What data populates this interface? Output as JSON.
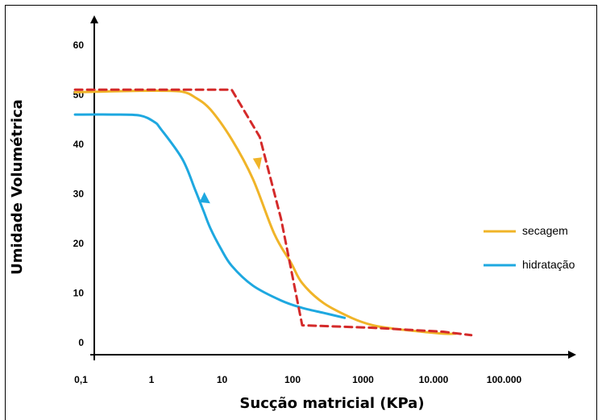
{
  "chart_data": {
    "type": "line",
    "xlabel": "Sucção matricial (KPa)",
    "ylabel": "Umidade Volumétrica",
    "x_scale": "log",
    "x_tick_labels": [
      "0,1",
      "1",
      "10",
      "100",
      "1000",
      "10.000",
      "100.000"
    ],
    "x_ticks": [
      0.1,
      1,
      10,
      100,
      1000,
      10000,
      100000
    ],
    "y_tick_labels": [
      "0",
      "10",
      "20",
      "30",
      "40",
      "50",
      "60"
    ],
    "y_ticks": [
      0,
      10,
      20,
      30,
      40,
      50,
      60
    ],
    "grid": false,
    "legend_position": "right",
    "series": [
      {
        "name": "secagem",
        "color": "#f0b428",
        "style": "solid",
        "arrow": "down",
        "x": [
          0.06,
          0.5,
          1,
          2,
          3,
          5,
          10,
          20,
          40,
          70,
          100,
          200,
          500,
          1000,
          2000,
          5000,
          10000,
          15000
        ],
        "y": [
          50.5,
          50.8,
          50.8,
          50.6,
          49.5,
          47,
          41,
          33,
          22,
          16,
          12,
          8,
          5,
          3.5,
          2.8,
          2.2,
          1.8,
          1.8
        ]
      },
      {
        "name": "hidratação",
        "color": "#1ea8e0",
        "style": "solid",
        "arrow": "up",
        "x": [
          0.06,
          0.2,
          0.5,
          0.8,
          1,
          2,
          3,
          4,
          5,
          7,
          10,
          20,
          50,
          100,
          200,
          400
        ],
        "y": [
          46,
          46,
          45.8,
          44.5,
          43,
          37,
          31,
          26.5,
          23,
          19,
          15.5,
          11.5,
          8.5,
          7,
          6,
          5
        ]
      },
      {
        "name": "",
        "color": "#d42a2a",
        "style": "dashed",
        "x": [
          0.06,
          1,
          10,
          25,
          50,
          100,
          1000,
          10000,
          25000
        ],
        "y": [
          51,
          51,
          51,
          41.5,
          25,
          3.5,
          3,
          2.2,
          1.5
        ]
      }
    ],
    "legend": [
      {
        "series": "secagem",
        "label": "secagem"
      },
      {
        "series": "hidratação",
        "label": "hidratação"
      }
    ]
  }
}
